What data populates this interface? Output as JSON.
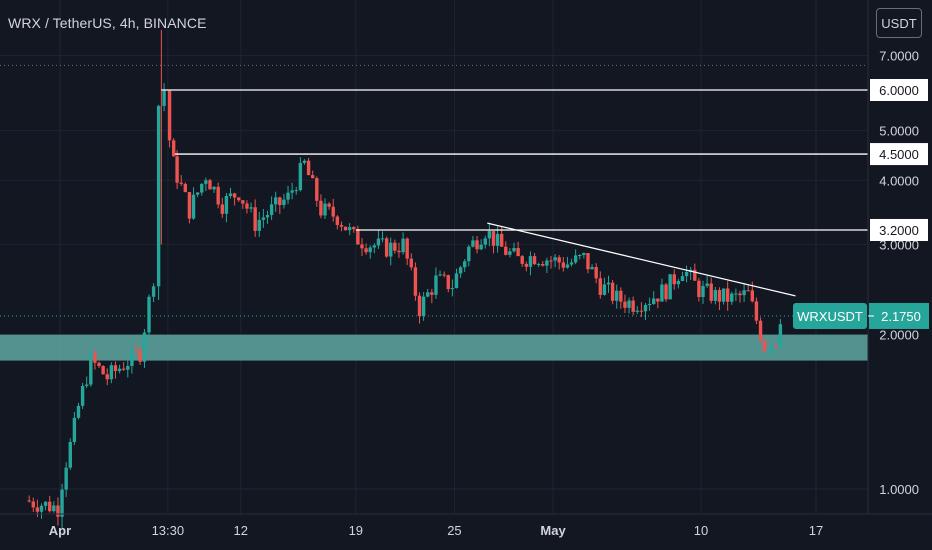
{
  "header": {
    "symbol_title": "WRX / TetherUS, 4h, BINANCE",
    "currency": "USDT"
  },
  "colors": {
    "background": "#131722",
    "up": "#26a69a",
    "down": "#ef5350",
    "level_line": "#ffffff",
    "support_zone": "#5fa8a1",
    "axis_text": "#d1d4dc"
  },
  "chart_data": {
    "type": "candlestick",
    "symbol": "WRXUSDT",
    "interval": "4h",
    "exchange": "BINANCE",
    "y_axis": {
      "scale": "log",
      "ylim": [
        0.86,
        7.0
      ],
      "tick_labels": [
        "7.0000",
        "6.0000",
        "5.0000",
        "4.5000",
        "4.0000",
        "3.2000",
        "3.0000",
        "2.1750",
        "2.0000",
        "1.0000"
      ],
      "ticks": [
        7.0,
        5.0,
        4.0,
        3.0,
        2.0,
        1.0
      ]
    },
    "x_axis": {
      "tick_labels": [
        "Apr",
        "13:30",
        "12",
        "19",
        "25",
        "May",
        "10",
        "17"
      ],
      "ticks": [
        {
          "label": "Apr",
          "date": "2021-04-01"
        },
        {
          "label": "13:30",
          "date": "2021-04-07 13:30"
        },
        {
          "label": "12",
          "date": "2021-04-12"
        },
        {
          "label": "19",
          "date": "2021-04-19"
        },
        {
          "label": "25",
          "date": "2021-04-25"
        },
        {
          "label": "May",
          "date": "2021-05-01"
        },
        {
          "label": "10",
          "date": "2021-05-10"
        },
        {
          "label": "17",
          "date": "2021-05-17"
        }
      ]
    },
    "horizontal_levels": [
      {
        "value": 6.0,
        "label": "6.0000"
      },
      {
        "value": 4.5,
        "label": "4.5000"
      },
      {
        "value": 3.2,
        "label": "3.2000"
      }
    ],
    "support_zone": {
      "from": 1.78,
      "to": 2.0
    },
    "trendline": {
      "start": {
        "date": "2021-04-27",
        "value": 3.3
      },
      "end": {
        "date": "2021-05-15 18:00",
        "value": 2.38
      }
    },
    "last_price": {
      "symbol": "WRXUSDT",
      "value": 2.175,
      "label": "2.1750"
    },
    "series": [
      {
        "date": "2021-03-30",
        "close": 0.95
      },
      {
        "date": "2021-04-01",
        "close": 0.92
      },
      {
        "date": "2021-04-02",
        "close": 1.35
      },
      {
        "date": "2021-04-03",
        "close": 1.78
      },
      {
        "date": "2021-04-04",
        "close": 1.65
      },
      {
        "date": "2021-04-05",
        "close": 1.75
      },
      {
        "date": "2021-04-06",
        "close": 1.85
      },
      {
        "date": "2021-04-06 20:00",
        "close": 2.6
      },
      {
        "date": "2021-04-07 04:00",
        "close": 5.6
      },
      {
        "date": "2021-04-07 12:00",
        "close": 6.0
      },
      {
        "date": "2021-04-07 20:00",
        "close": 4.8
      },
      {
        "date": "2021-04-08",
        "close": 4.3
      },
      {
        "date": "2021-04-09",
        "close": 3.5
      },
      {
        "date": "2021-04-10",
        "close": 4.1
      },
      {
        "date": "2021-04-11",
        "close": 3.6
      },
      {
        "date": "2021-04-12",
        "close": 3.8
      },
      {
        "date": "2021-04-13",
        "close": 3.3
      },
      {
        "date": "2021-04-14",
        "close": 3.5
      },
      {
        "date": "2021-04-15",
        "close": 3.7
      },
      {
        "date": "2021-04-16",
        "close": 4.3
      },
      {
        "date": "2021-04-17",
        "close": 3.5
      },
      {
        "date": "2021-04-18",
        "close": 3.4
      },
      {
        "date": "2021-04-19",
        "close": 3.1
      },
      {
        "date": "2021-04-20",
        "close": 3.0
      },
      {
        "date": "2021-04-21",
        "close": 2.95
      },
      {
        "date": "2021-04-22",
        "close": 3.0
      },
      {
        "date": "2021-04-23",
        "close": 2.25
      },
      {
        "date": "2021-04-24",
        "close": 2.55
      },
      {
        "date": "2021-04-25",
        "close": 2.5
      },
      {
        "date": "2021-04-26",
        "close": 2.95
      },
      {
        "date": "2021-04-27",
        "close": 3.2
      },
      {
        "date": "2021-04-28",
        "close": 2.95
      },
      {
        "date": "2021-04-29",
        "close": 2.8
      },
      {
        "date": "2021-04-30",
        "close": 2.85
      },
      {
        "date": "2021-05-01",
        "close": 2.8
      },
      {
        "date": "2021-05-02",
        "close": 2.75
      },
      {
        "date": "2021-05-03",
        "close": 2.82
      },
      {
        "date": "2021-05-04",
        "close": 2.5
      },
      {
        "date": "2021-05-05",
        "close": 2.35
      },
      {
        "date": "2021-05-06",
        "close": 2.3
      },
      {
        "date": "2021-05-07",
        "close": 2.35
      },
      {
        "date": "2021-05-08",
        "close": 2.45
      },
      {
        "date": "2021-05-09",
        "close": 2.7
      },
      {
        "date": "2021-05-10",
        "close": 2.45
      },
      {
        "date": "2021-05-11",
        "close": 2.38
      },
      {
        "date": "2021-05-12",
        "close": 2.35
      },
      {
        "date": "2021-05-13",
        "close": 2.4
      },
      {
        "date": "2021-05-14",
        "close": 1.9
      },
      {
        "date": "2021-05-14 16:00",
        "close": 1.95
      },
      {
        "date": "2021-05-15",
        "close": 2.175
      }
    ]
  }
}
